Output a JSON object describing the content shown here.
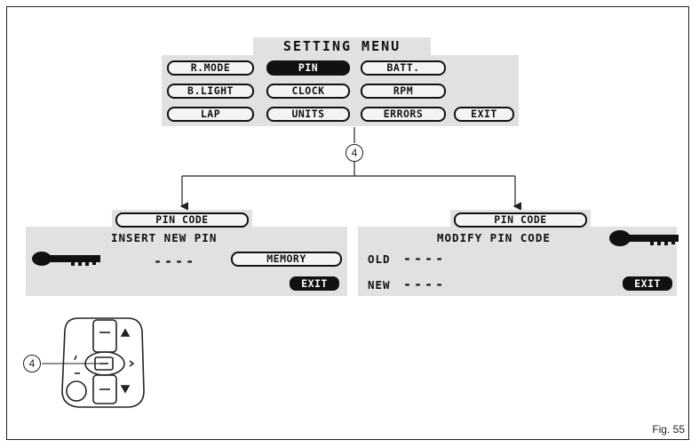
{
  "setting_menu": {
    "title": "SETTING MENU",
    "buttons": [
      {
        "label": "R.MODE",
        "selected": false
      },
      {
        "label": "PIN",
        "selected": true
      },
      {
        "label": "BATT.",
        "selected": false
      },
      {
        "label": "B.LIGHT",
        "selected": false
      },
      {
        "label": "CLOCK",
        "selected": false
      },
      {
        "label": "RPM",
        "selected": false
      },
      {
        "label": "LAP",
        "selected": false
      },
      {
        "label": "UNITS",
        "selected": false
      },
      {
        "label": "ERRORS",
        "selected": false
      },
      {
        "label": "EXIT",
        "selected": false
      }
    ]
  },
  "callout_label": "4",
  "insert_screen": {
    "title": "PIN CODE",
    "heading": "INSERT NEW PIN",
    "pin_placeholder": "----",
    "memory_button": "MEMORY",
    "exit_button": "EXIT",
    "icon": "key-icon"
  },
  "modify_screen": {
    "title": "PIN CODE",
    "heading": "MODIFY PIN CODE",
    "old_label": "OLD",
    "old_value": "----",
    "new_label": "NEW",
    "new_value": "----",
    "exit_button": "EXIT",
    "icon": "key-icon"
  },
  "switch_callout": "4",
  "figure_label": "Fig. 55"
}
